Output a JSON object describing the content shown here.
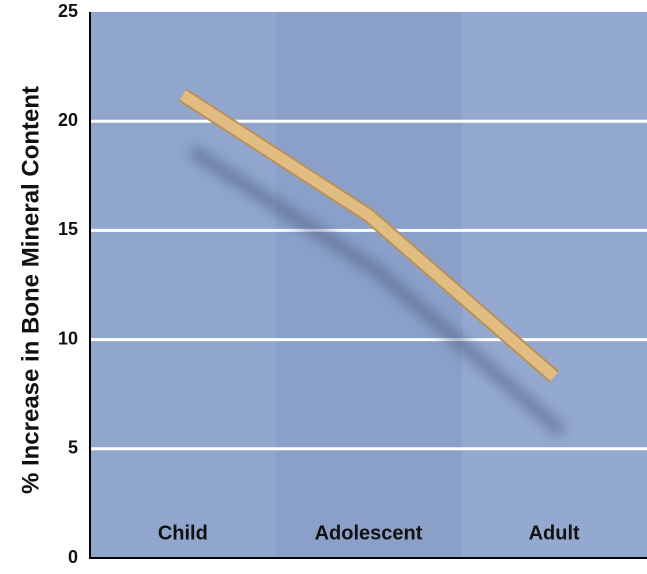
{
  "chart_data": {
    "type": "line",
    "y_label": "% Increase in Bone Mineral Content",
    "categories": [
      "Child",
      "Adolescent",
      "Adult"
    ],
    "values": [
      21.2,
      15.7,
      8.3
    ],
    "color": "#e2bd82",
    "ylim": [
      0,
      25
    ],
    "yticks": [
      0,
      5,
      10,
      15,
      20,
      25
    ],
    "grid": true
  }
}
